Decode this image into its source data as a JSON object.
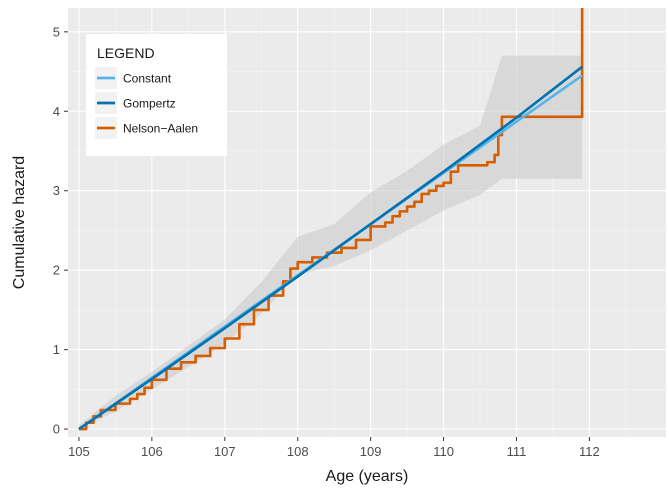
{
  "chart_data": {
    "type": "line",
    "title": "",
    "xlabel": "Age (years)",
    "ylabel": "Cumulative hazard",
    "xlim": [
      104.85,
      113.05
    ],
    "ylim": [
      -0.1,
      5.3
    ],
    "x_ticks": [
      105,
      106,
      107,
      108,
      109,
      110,
      111,
      112
    ],
    "y_ticks": [
      0,
      1,
      2,
      3,
      4,
      5
    ],
    "grid": true,
    "legend": {
      "title": "LEGEND",
      "position": "top-left",
      "entries": [
        "Constant",
        "Gompertz",
        "Nelson−Aalen"
      ]
    },
    "series": [
      {
        "name": "Constant",
        "color": "#56b4e9",
        "style": "line",
        "x": [
          105,
          111.9
        ],
        "y": [
          0,
          4.45
        ]
      },
      {
        "name": "Gompertz",
        "color": "#0072b2",
        "style": "line",
        "x": [
          105,
          106,
          107,
          108,
          109,
          110,
          111,
          111.9
        ],
        "y": [
          0,
          0.63,
          1.27,
          1.92,
          2.58,
          3.24,
          3.92,
          4.56
        ]
      },
      {
        "name": "Nelson−Aalen",
        "color": "#d55e00",
        "style": "step",
        "x": [
          105,
          105.1,
          105.2,
          105.3,
          105.5,
          105.7,
          105.8,
          105.9,
          106.0,
          106.2,
          106.4,
          106.6,
          106.8,
          107.0,
          107.2,
          107.4,
          107.6,
          107.8,
          107.9,
          108.0,
          108.2,
          108.4,
          108.6,
          108.8,
          109.0,
          109.2,
          109.3,
          109.4,
          109.5,
          109.6,
          109.7,
          109.8,
          109.9,
          110.0,
          110.1,
          110.2,
          110.4,
          110.6,
          110.7,
          110.75,
          110.8,
          111.9,
          111.9
        ],
        "y": [
          0,
          0.08,
          0.16,
          0.24,
          0.32,
          0.38,
          0.44,
          0.52,
          0.62,
          0.76,
          0.84,
          0.92,
          1.02,
          1.14,
          1.32,
          1.5,
          1.68,
          1.86,
          2.02,
          2.1,
          2.16,
          2.22,
          2.28,
          2.38,
          2.55,
          2.6,
          2.68,
          2.74,
          2.8,
          2.86,
          2.96,
          3.0,
          3.06,
          3.1,
          3.24,
          3.32,
          3.32,
          3.36,
          3.45,
          3.7,
          3.93,
          3.93,
          5.3
        ]
      }
    ],
    "confidence_band": {
      "color": "#c8c8c8",
      "x": [
        105,
        105.5,
        106,
        106.5,
        107,
        107.5,
        108,
        108.5,
        109,
        109.5,
        110,
        110.5,
        110.8,
        111.9
      ],
      "upper": [
        0.05,
        0.42,
        0.72,
        1.05,
        1.38,
        1.85,
        2.42,
        2.58,
        2.98,
        3.25,
        3.58,
        3.82,
        4.7,
        4.7
      ],
      "lower": [
        0.0,
        0.22,
        0.5,
        0.78,
        1.08,
        1.45,
        1.95,
        2.05,
        2.25,
        2.5,
        2.75,
        2.95,
        3.15,
        3.15
      ]
    }
  }
}
